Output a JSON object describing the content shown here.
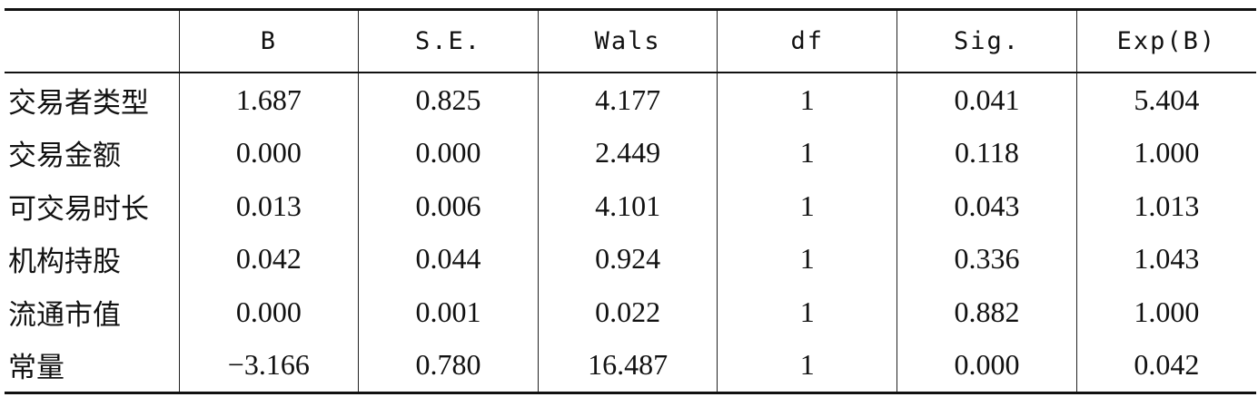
{
  "table": {
    "header": [
      "B",
      "S.E.",
      "Wals",
      "df",
      "Sig.",
      "Exp(B)"
    ],
    "rows": [
      [
        "交易者类型",
        "1.687",
        "0.825",
        "4.177",
        "1",
        "0.041",
        "5.404"
      ],
      [
        "交易金额",
        "0.000",
        "0.000",
        "2.449",
        "1",
        "0.118",
        "1.000"
      ],
      [
        "可交易时长",
        "0.013",
        "0.006",
        "4.101",
        "1",
        "0.043",
        "1.013"
      ],
      [
        "机构持股",
        "0.042",
        "0.044",
        "0.924",
        "1",
        "0.336",
        "1.043"
      ],
      [
        "流通市值",
        "0.000",
        "0.001",
        "0.022",
        "1",
        "0.882",
        "1.000"
      ],
      [
        "常量",
        "−3.166",
        "0.780",
        "16.487",
        "1",
        "0.000",
        "0.042"
      ]
    ]
  }
}
